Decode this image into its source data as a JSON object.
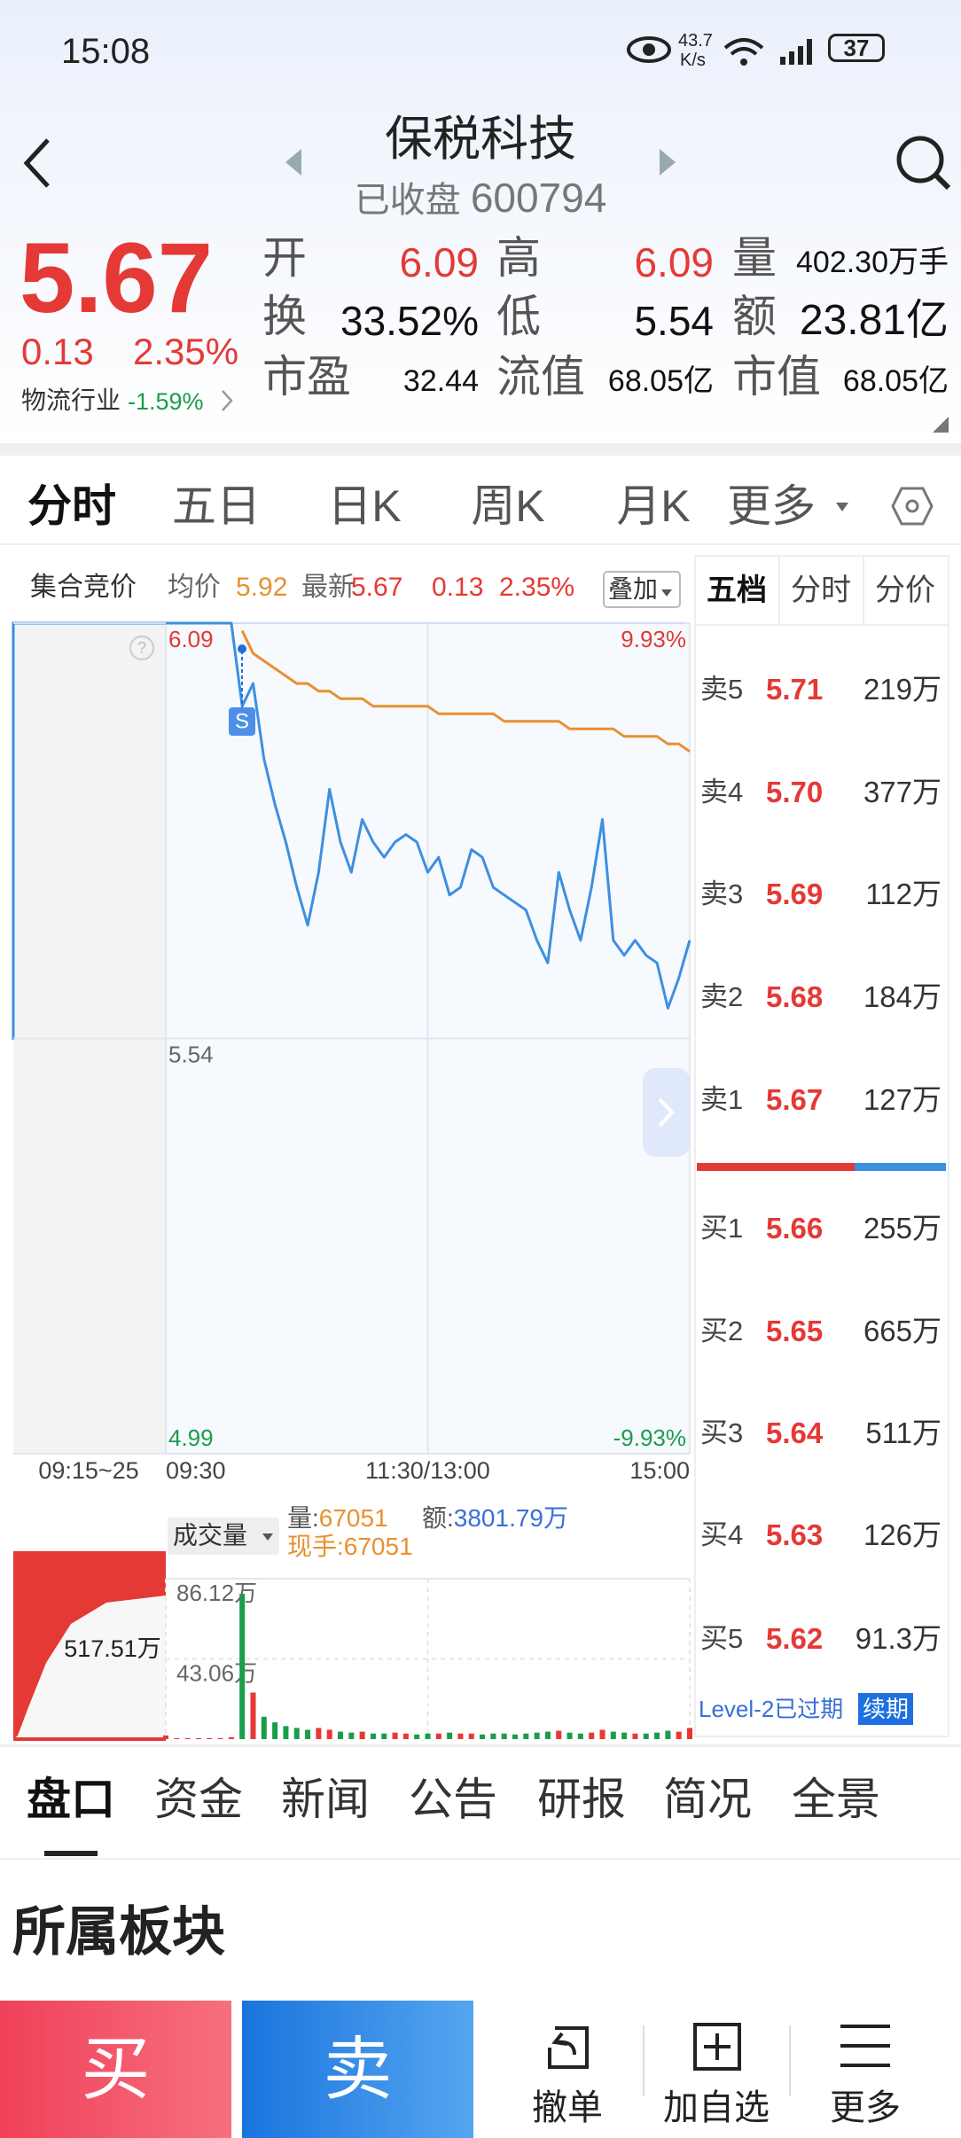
{
  "status_bar": {
    "time": "15:08",
    "net_speed": "43.7",
    "net_unit": "K/s",
    "battery": "37"
  },
  "header": {
    "title": "保税科技",
    "status": "已收盘",
    "code": "600794"
  },
  "quote": {
    "price": "5.67",
    "change": "0.13",
    "change_pct": "2.35%",
    "industry": "物流行业",
    "industry_change": "-1.59%",
    "stats": [
      {
        "label": "开",
        "value": "6.09"
      },
      {
        "label": "高",
        "value": "6.09"
      },
      {
        "label": "量",
        "value": "402.30万手"
      },
      {
        "label": "换",
        "value": "33.52%"
      },
      {
        "label": "低",
        "value": "5.54"
      },
      {
        "label": "额",
        "value": "23.81亿"
      },
      {
        "label": "市盈",
        "value": "32.44"
      },
      {
        "label": "流值",
        "value": "68.05亿"
      },
      {
        "label": "市值",
        "value": "68.05亿"
      }
    ]
  },
  "chart_tabs": [
    "分时",
    "五日",
    "日K",
    "周K",
    "月K",
    "更多"
  ],
  "info_bar": {
    "auction": "集合竞价",
    "avg_label": "均价",
    "avg": "5.92",
    "latest_label": "最新",
    "latest": "5.67",
    "change": "0.13",
    "change_pct": "2.35%",
    "overlay": "叠加"
  },
  "chart_data": [
    {
      "type": "line",
      "auction_label": "09:15~25",
      "marker": "S",
      "x": [
        0,
        5,
        10,
        15,
        20,
        25,
        30,
        35,
        40,
        45,
        50,
        55,
        60,
        65,
        70,
        75,
        80,
        85,
        90,
        95,
        100,
        105,
        110,
        115,
        120,
        125,
        130,
        135,
        140,
        145,
        150,
        155,
        160,
        165,
        170,
        175,
        180,
        185,
        190,
        195,
        200,
        205,
        210,
        215,
        220,
        225,
        230,
        235,
        240
      ],
      "xlim": [
        0,
        240
      ],
      "xticks": [
        {
          "value": 0,
          "label": "09:30"
        },
        {
          "value": 120,
          "label": "11:30/13:00"
        },
        {
          "value": 240,
          "label": "15:00"
        }
      ],
      "ylim": [
        4.99,
        6.09
      ],
      "yticks": [
        6.09,
        5.54,
        4.99
      ],
      "y2lim": [
        -9.93,
        9.93
      ],
      "y2ticks": [
        {
          "value": 9.93,
          "label": "9.93%"
        },
        {
          "value": -9.93,
          "label": "-9.93%"
        }
      ],
      "series": [
        {
          "color": "#3d8fe0",
          "values": [
            6.09,
            6.09,
            6.09,
            6.09,
            6.09,
            6.09,
            6.09,
            5.98,
            6.01,
            5.91,
            5.85,
            5.8,
            5.74,
            5.69,
            5.76,
            5.87,
            5.8,
            5.76,
            5.83,
            5.8,
            5.78,
            5.8,
            5.81,
            5.8,
            5.76,
            5.78,
            5.73,
            5.74,
            5.79,
            5.78,
            5.74,
            5.73,
            5.72,
            5.71,
            5.67,
            5.64,
            5.76,
            5.71,
            5.67,
            5.74,
            5.83,
            5.67,
            5.65,
            5.67,
            5.65,
            5.64,
            5.58,
            5.62,
            5.67
          ]
        },
        {
          "color": "#e8902e",
          "values": [
            null,
            null,
            null,
            null,
            null,
            null,
            null,
            6.08,
            6.05,
            6.04,
            6.03,
            6.02,
            6.01,
            6.01,
            6.0,
            6.0,
            5.99,
            5.99,
            5.99,
            5.98,
            5.98,
            5.98,
            5.98,
            5.98,
            5.98,
            5.97,
            5.97,
            5.97,
            5.97,
            5.97,
            5.97,
            5.96,
            5.96,
            5.96,
            5.96,
            5.96,
            5.96,
            5.95,
            5.95,
            5.95,
            5.95,
            5.95,
            5.94,
            5.94,
            5.94,
            5.94,
            5.93,
            5.93,
            5.92
          ]
        }
      ]
    },
    {
      "type": "bar",
      "title": "成交量",
      "auction_label": "517.51万",
      "legend": [
        {
          "label": "量:",
          "value": "67051"
        },
        {
          "label": "额:",
          "value": "3801.79万"
        },
        {
          "label": "现手:",
          "value": "67051"
        }
      ],
      "x": [
        0,
        5,
        10,
        15,
        20,
        25,
        30,
        35,
        40,
        45,
        50,
        55,
        60,
        65,
        70,
        75,
        80,
        85,
        90,
        95,
        100,
        105,
        110,
        115,
        120,
        125,
        130,
        135,
        140,
        145,
        150,
        155,
        160,
        165,
        170,
        175,
        180,
        185,
        190,
        195,
        200,
        205,
        210,
        215,
        220,
        225,
        230,
        235,
        240
      ],
      "xlim": [
        0,
        240
      ],
      "ylim": [
        0,
        861200
      ],
      "yticks": [
        {
          "value": 861200,
          "label": "86.12万"
        },
        {
          "value": 430600,
          "label": "43.06万"
        }
      ],
      "up_color": "#e53935",
      "down_color": "#1a9d4b",
      "values": [
        20000,
        5000,
        5000,
        5000,
        5000,
        5000,
        10000,
        780000,
        250000,
        120000,
        90000,
        70000,
        60000,
        50000,
        60000,
        50000,
        40000,
        35000,
        40000,
        30000,
        30000,
        35000,
        30000,
        25000,
        30000,
        30000,
        35000,
        30000,
        30000,
        25000,
        30000,
        30000,
        25000,
        30000,
        35000,
        40000,
        45000,
        35000,
        30000,
        35000,
        50000,
        40000,
        35000,
        30000,
        30000,
        35000,
        45000,
        40000,
        60000
      ]
    }
  ],
  "order_book": {
    "tabs": [
      "五档",
      "分时",
      "分价"
    ],
    "asks": [
      {
        "label": "卖5",
        "price": "5.71",
        "volume": "219万"
      },
      {
        "label": "卖4",
        "price": "5.70",
        "volume": "377万"
      },
      {
        "label": "卖3",
        "price": "5.69",
        "volume": "112万"
      },
      {
        "label": "卖2",
        "price": "5.68",
        "volume": "184万"
      },
      {
        "label": "卖1",
        "price": "5.67",
        "volume": "127万"
      }
    ],
    "bids": [
      {
        "label": "买1",
        "price": "5.66",
        "volume": "255万"
      },
      {
        "label": "买2",
        "price": "5.65",
        "volume": "665万"
      },
      {
        "label": "买3",
        "price": "5.64",
        "volume": "511万"
      },
      {
        "label": "买4",
        "price": "5.63",
        "volume": "126万"
      },
      {
        "label": "买5",
        "price": "5.62",
        "volume": "91.3万"
      }
    ],
    "level2": "Level-2已过期",
    "renew": "续期"
  },
  "bottom_tabs": [
    "盘口",
    "资金",
    "新闻",
    "公告",
    "研报",
    "简况",
    "全景"
  ],
  "section_title": "所属板块",
  "actions": {
    "buy": "买",
    "sell": "卖",
    "items": [
      "撤单",
      "加自选",
      "更多"
    ]
  }
}
